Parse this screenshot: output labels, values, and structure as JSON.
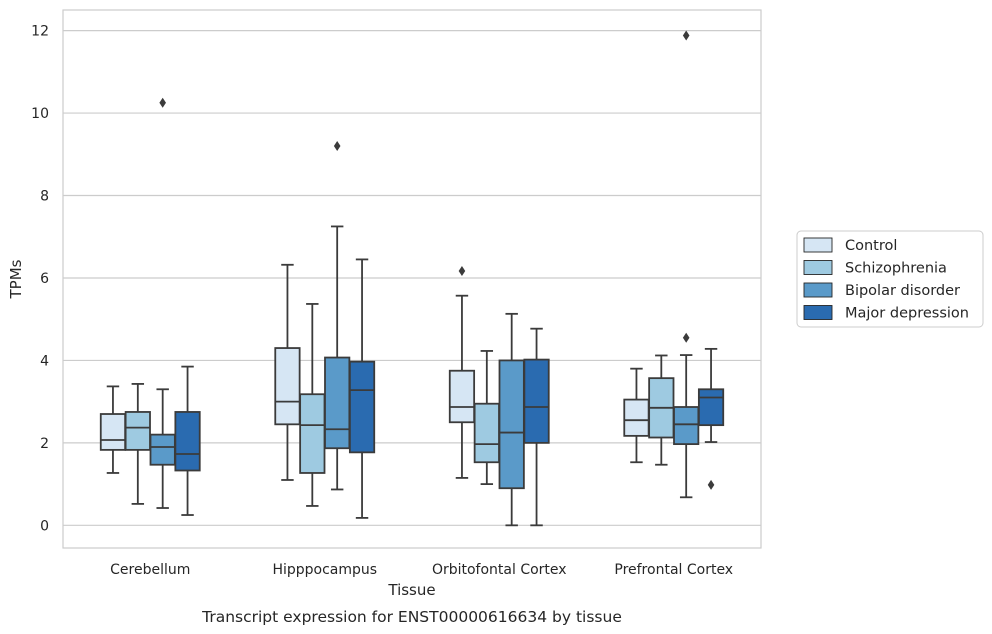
{
  "chart_data": {
    "type": "box",
    "title": "Transcript expression for ENST00000616634 by tissue",
    "xlabel": "Tissue",
    "ylabel": "TPMs",
    "ylim": [
      -0.55,
      12.5
    ],
    "yticks": [
      0,
      2,
      4,
      6,
      8,
      10,
      12
    ],
    "grid": "horizontal",
    "legend_position": "right",
    "categories": [
      "Cerebellum",
      "Hipppocampus",
      "Orbitofontal Cortex",
      "Prefrontal Cortex"
    ],
    "series": [
      {
        "name": "Control",
        "color": "#d6e6f4",
        "boxes": [
          {
            "whislo": 1.27,
            "q1": 1.83,
            "med": 2.07,
            "q3": 2.7,
            "whishi": 3.37,
            "fliers": []
          },
          {
            "whislo": 1.1,
            "q1": 2.45,
            "med": 3.0,
            "q3": 4.3,
            "whishi": 6.32,
            "fliers": []
          },
          {
            "whislo": 1.15,
            "q1": 2.5,
            "med": 2.87,
            "q3": 3.75,
            "whishi": 5.57,
            "fliers": [
              6.17
            ]
          },
          {
            "whislo": 1.53,
            "q1": 2.17,
            "med": 2.55,
            "q3": 3.05,
            "whishi": 3.8,
            "fliers": []
          }
        ]
      },
      {
        "name": "Schizophrenia",
        "color": "#9ecae1",
        "boxes": [
          {
            "whislo": 0.52,
            "q1": 1.83,
            "med": 2.37,
            "q3": 2.75,
            "whishi": 3.43,
            "fliers": []
          },
          {
            "whislo": 0.47,
            "q1": 1.27,
            "med": 2.43,
            "q3": 3.18,
            "whishi": 5.37,
            "fliers": []
          },
          {
            "whislo": 1.0,
            "q1": 1.53,
            "med": 1.97,
            "q3": 2.95,
            "whishi": 4.23,
            "fliers": []
          },
          {
            "whislo": 1.47,
            "q1": 2.13,
            "med": 2.85,
            "q3": 3.57,
            "whishi": 4.12,
            "fliers": []
          }
        ]
      },
      {
        "name": "Bipolar disorder",
        "color": "#5a9ac9",
        "boxes": [
          {
            "whislo": 0.42,
            "q1": 1.47,
            "med": 1.9,
            "q3": 2.2,
            "whishi": 3.3,
            "fliers": [
              10.25
            ]
          },
          {
            "whislo": 0.87,
            "q1": 1.87,
            "med": 2.33,
            "q3": 4.07,
            "whishi": 7.25,
            "fliers": [
              9.2
            ]
          },
          {
            "whislo": 0.0,
            "q1": 0.9,
            "med": 2.25,
            "q3": 4.0,
            "whishi": 5.13,
            "fliers": []
          },
          {
            "whislo": 0.68,
            "q1": 1.97,
            "med": 2.45,
            "q3": 2.87,
            "whishi": 4.13,
            "fliers": [
              4.55,
              11.88
            ]
          }
        ]
      },
      {
        "name": "Major depression",
        "color": "#2a6bb0",
        "boxes": [
          {
            "whislo": 0.25,
            "q1": 1.33,
            "med": 1.73,
            "q3": 2.75,
            "whishi": 3.85,
            "fliers": []
          },
          {
            "whislo": 0.18,
            "q1": 1.77,
            "med": 3.28,
            "q3": 3.97,
            "whishi": 6.45,
            "fliers": []
          },
          {
            "whislo": 0.0,
            "q1": 2.0,
            "med": 2.87,
            "q3": 4.02,
            "whishi": 4.77,
            "fliers": []
          },
          {
            "whislo": 2.02,
            "q1": 2.43,
            "med": 3.1,
            "q3": 3.3,
            "whishi": 4.28,
            "fliers": [
              0.98
            ]
          }
        ]
      }
    ]
  }
}
